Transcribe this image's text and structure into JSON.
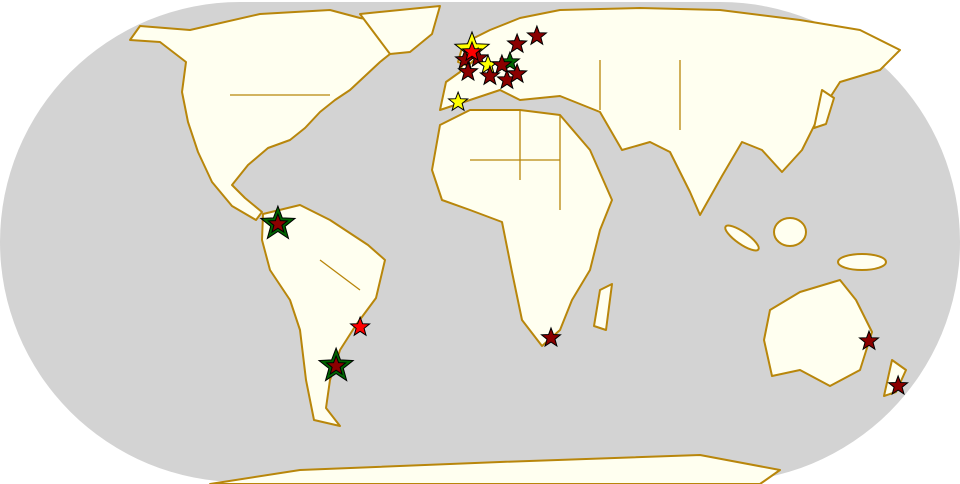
{
  "map": {
    "projection": "world-oval",
    "ocean_color": "#d3d3d3",
    "land_color": "#fffff0",
    "coast_color": "#b8860b",
    "markers": [
      {
        "lon": -75.7,
        "lat": 6.8,
        "color": "#006400",
        "size": "large"
      },
      {
        "lon": -75.7,
        "lat": 6.8,
        "color": "#8b0000",
        "size": "normal"
      },
      {
        "lon": -53.9,
        "lat": -46.8,
        "color": "#006400",
        "size": "large"
      },
      {
        "lon": -53.9,
        "lat": -46.8,
        "color": "#8b0000",
        "size": "normal"
      },
      {
        "lon": -44.9,
        "lat": -32.1,
        "color": "#ff0000",
        "size": "normal"
      },
      {
        "lon": 26.6,
        "lat": -36.2,
        "color": "#8b0000",
        "size": "normal"
      },
      {
        "lon": 145.7,
        "lat": -37.4,
        "color": "#8b0000",
        "size": "normal"
      },
      {
        "lon": 156.6,
        "lat": -54.3,
        "color": "#8b0000",
        "size": "normal"
      },
      {
        "lon": -3.0,
        "lat": 72.5,
        "color": "#ffff00",
        "size": "large"
      },
      {
        "lon": -5.6,
        "lat": 68.7,
        "color": "#8b0000",
        "size": "normal"
      },
      {
        "lon": -0.7,
        "lat": 69.4,
        "color": "#8b0000",
        "size": "normal"
      },
      {
        "lon": -3.0,
        "lat": 71.7,
        "color": "#ff0000",
        "size": "normal"
      },
      {
        "lon": 13.9,
        "lat": 74.7,
        "color": "#8b0000",
        "size": "normal"
      },
      {
        "lon": 21.3,
        "lat": 77.7,
        "color": "#8b0000",
        "size": "normal"
      },
      {
        "lon": 11.2,
        "lat": 67.9,
        "color": "#006400",
        "size": "normal"
      },
      {
        "lon": 3.0,
        "lat": 66.8,
        "color": "#ffff00",
        "size": "normal"
      },
      {
        "lon": 8.2,
        "lat": 66.8,
        "color": "#8b0000",
        "size": "normal"
      },
      {
        "lon": -4.5,
        "lat": 64.2,
        "color": "#8b0000",
        "size": "normal"
      },
      {
        "lon": 3.7,
        "lat": 62.6,
        "color": "#8b0000",
        "size": "normal"
      },
      {
        "lon": 10.1,
        "lat": 61.1,
        "color": "#8b0000",
        "size": "normal"
      },
      {
        "lon": 13.9,
        "lat": 63.4,
        "color": "#8b0000",
        "size": "normal"
      },
      {
        "lon": -8.2,
        "lat": 52.8,
        "color": "#ffff00",
        "size": "normal"
      }
    ]
  }
}
